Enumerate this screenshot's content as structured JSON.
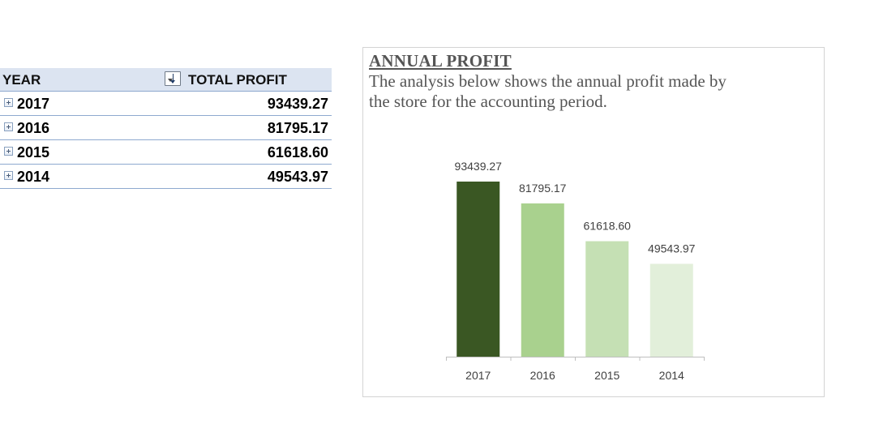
{
  "pivot": {
    "headers": {
      "year": "YEAR",
      "profit": "TOTAL PROFIT"
    },
    "rows": [
      {
        "year": "2017",
        "profit": "93439.27"
      },
      {
        "year": "2016",
        "profit": "81795.17"
      },
      {
        "year": "2015",
        "profit": "61618.60"
      },
      {
        "year": "2014",
        "profit": "49543.97"
      }
    ]
  },
  "chart_panel": {
    "title": "ANNUAL PROFIT",
    "description": "The analysis below shows the annual profit made by the store for the accounting period."
  },
  "chart_data": {
    "type": "bar",
    "title": "ANNUAL PROFIT",
    "categories": [
      "2017",
      "2016",
      "2015",
      "2014"
    ],
    "values": [
      93439.27,
      81795.17,
      61618.6,
      49543.97
    ],
    "value_labels": [
      "93439.27",
      "81795.17",
      "61618.60",
      "49543.97"
    ],
    "bar_colors": [
      "#3a5723",
      "#a9d18e",
      "#c5e0b4",
      "#e2efda"
    ],
    "xlabel": "",
    "ylabel": "",
    "ylim": [
      0,
      93439.27
    ],
    "grid": false,
    "legend": "none"
  },
  "colors": {
    "header_bg": "#dce4f1",
    "row_border": "#8ea9cf",
    "axis": "#bfbfbf",
    "label_text": "#404040"
  }
}
